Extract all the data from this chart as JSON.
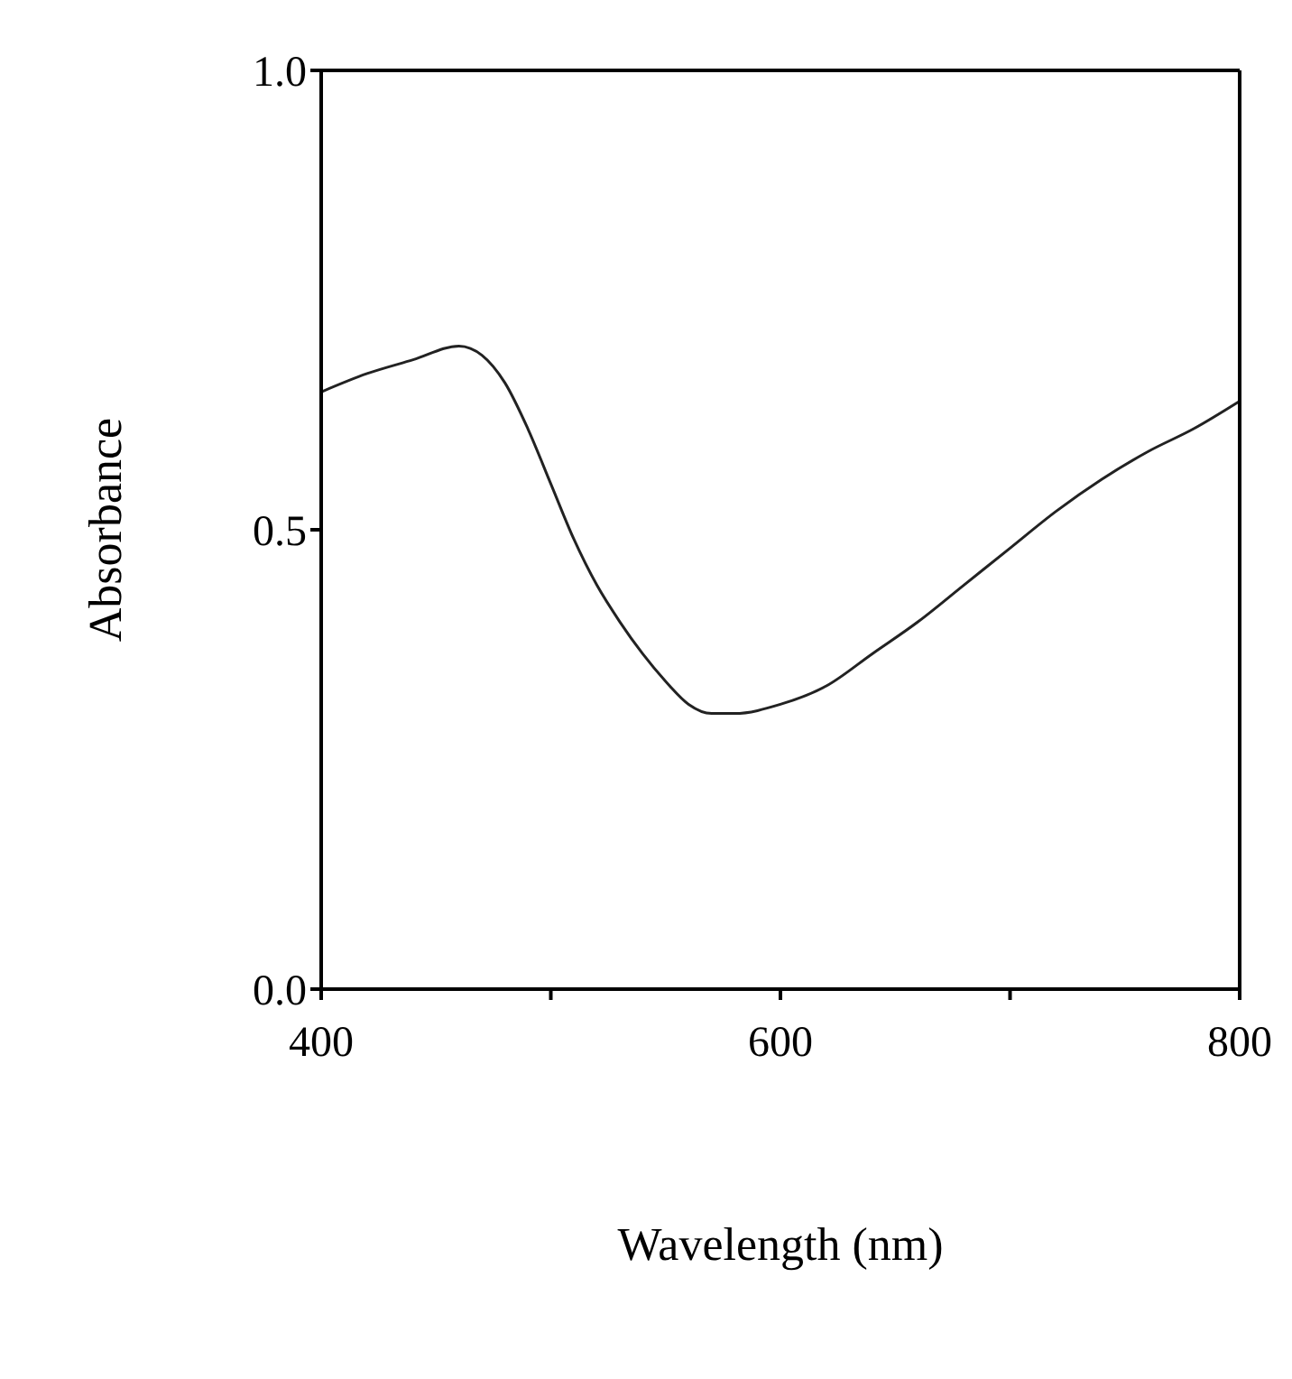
{
  "chart_data": {
    "type": "line",
    "xlabel": "Wavelength (nm)",
    "ylabel": "Absorbance",
    "x": [
      400,
      420,
      440,
      460,
      470,
      480,
      490,
      500,
      510,
      520,
      530,
      540,
      550,
      560,
      570,
      580,
      600,
      620,
      640,
      660,
      680,
      700,
      720,
      740,
      760,
      780,
      800
    ],
    "series": [
      {
        "color": "#222222",
        "values": [
          0.65,
          0.67,
          0.685,
          0.7,
          0.69,
          0.66,
          0.61,
          0.55,
          0.49,
          0.44,
          0.4,
          0.365,
          0.335,
          0.31,
          0.3,
          0.3,
          0.31,
          0.33,
          0.365,
          0.4,
          0.44,
          0.48,
          0.52,
          0.555,
          0.585,
          0.61,
          0.64
        ]
      }
    ],
    "xlim": [
      400,
      800
    ],
    "xticks": [
      400,
      {
        "value": 500,
        "label": null
      },
      600,
      {
        "value": 700,
        "label": null
      },
      800
    ],
    "ylim": [
      0,
      1
    ],
    "yticks": [
      {
        "value": 0,
        "label": "0.0"
      },
      {
        "value": 0.5,
        "label": "0.5"
      },
      {
        "value": 1,
        "label": "1.0"
      }
    ],
    "marker": "none",
    "line_style": "solid",
    "grid": false,
    "legend": false
  }
}
